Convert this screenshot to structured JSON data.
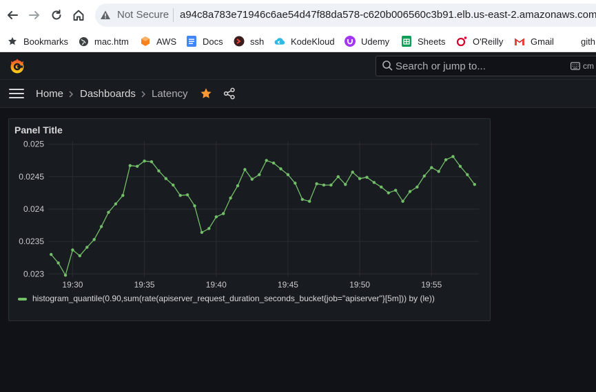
{
  "browser": {
    "security_label": "Not Secure",
    "url": "a94c8a783e71946c6ae54d47f88da578-c620b006560c3b91.elb.us-east-2.amazonaws.com",
    "bookmarks": [
      {
        "label": "Bookmarks",
        "icon": "star-icon"
      },
      {
        "label": "mac.htm",
        "icon": "globe-icon"
      },
      {
        "label": "AWS",
        "icon": "aws-icon"
      },
      {
        "label": "Docs",
        "icon": "docs-icon"
      },
      {
        "label": "ssh",
        "icon": "ssh-icon"
      },
      {
        "label": "KodeKloud",
        "icon": "kodekloud-icon"
      },
      {
        "label": "Udemy",
        "icon": "udemy-icon"
      },
      {
        "label": "Sheets",
        "icon": "sheets-icon"
      },
      {
        "label": "O'Reilly",
        "icon": "oreilly-icon"
      },
      {
        "label": "Gmail",
        "icon": "gmail-icon"
      },
      {
        "label": "gith",
        "icon": "github-icon"
      }
    ]
  },
  "grafana": {
    "search_placeholder": "Search or jump to...",
    "shortcut_hint": "cm",
    "breadcrumb": {
      "home": "Home",
      "dashboards": "Dashboards",
      "current": "Latency"
    },
    "panel": {
      "title": "Panel Title"
    }
  },
  "colors": {
    "series": "#73bf69",
    "star": "#ff9830",
    "background": "#111217",
    "panel": "#181b1f"
  },
  "chart_data": {
    "type": "line",
    "title": "Panel Title",
    "grid": true,
    "legend_position": "bottom-left",
    "x_min_minutes": 1168.3,
    "x_max_minutes": 1198.3,
    "ylim": [
      0.02295,
      0.02505
    ],
    "y_ticks": [
      "0.025",
      "0.0245",
      "0.024",
      "0.0235",
      "0.023"
    ],
    "y_tick_values": [
      0.025,
      0.0245,
      0.024,
      0.0235,
      0.023
    ],
    "x_ticks": [
      "19:30",
      "19:35",
      "19:40",
      "19:45",
      "19:50",
      "19:55"
    ],
    "x_tick_minutes": [
      1170,
      1175,
      1180,
      1185,
      1190,
      1195
    ],
    "series": [
      {
        "name": "histogram_quantile(0.90,sum(rate(apiserver_request_duration_seconds_bucket{job=\"apiserver\"}[5m])) by (le))",
        "interval_seconds": 30,
        "start_minute": 1168.5,
        "values": [
          0.0233,
          0.02317,
          0.02298,
          0.02337,
          0.02328,
          0.02341,
          0.02353,
          0.02373,
          0.02395,
          0.02408,
          0.02421,
          0.02467,
          0.02466,
          0.02474,
          0.02473,
          0.02459,
          0.02447,
          0.02437,
          0.02421,
          0.02422,
          0.02405,
          0.02364,
          0.0237,
          0.02388,
          0.02393,
          0.02417,
          0.02436,
          0.02461,
          0.02446,
          0.02453,
          0.02475,
          0.02471,
          0.02462,
          0.02453,
          0.0244,
          0.02415,
          0.02412,
          0.02439,
          0.02437,
          0.02437,
          0.0245,
          0.02438,
          0.02457,
          0.02447,
          0.02449,
          0.02441,
          0.02434,
          0.02425,
          0.02429,
          0.02412,
          0.02427,
          0.02434,
          0.02451,
          0.02464,
          0.02458,
          0.02476,
          0.02481,
          0.02466,
          0.02453,
          0.02438
        ]
      }
    ]
  }
}
